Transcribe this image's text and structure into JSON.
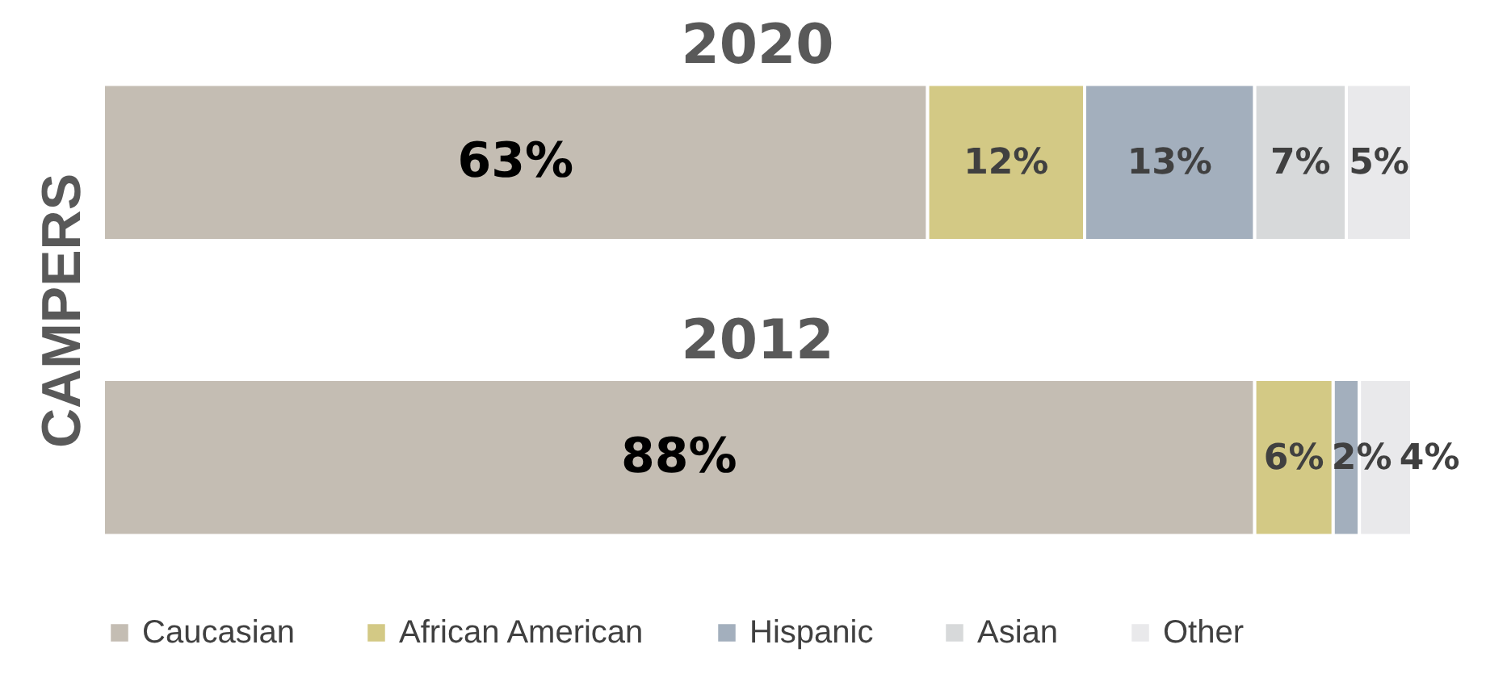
{
  "chart_data": {
    "type": "bar",
    "orientation": "horizontal",
    "stacked": true,
    "ylabel": "CAMPERS",
    "categories": [
      "2020",
      "2012"
    ],
    "legend": "bottom",
    "grid": false,
    "series": [
      {
        "name": "Caucasian",
        "color": "#c4bdb3",
        "values": [
          63,
          88
        ],
        "value_labels": [
          "63%",
          "88%"
        ]
      },
      {
        "name": "African American",
        "color": "#d3c985",
        "values": [
          12,
          6
        ],
        "value_labels": [
          "12%",
          "6%"
        ]
      },
      {
        "name": "Hispanic",
        "color": "#a3afbd",
        "values": [
          13,
          2
        ],
        "value_labels": [
          "13%",
          "2%"
        ]
      },
      {
        "name": "Asian",
        "color": "#d7d9da",
        "values": [
          7,
          0
        ],
        "value_labels": [
          "7%",
          null
        ]
      },
      {
        "name": "Other",
        "color": "#e9e9eb",
        "values": [
          5,
          4
        ],
        "value_labels": [
          "5%",
          "4%"
        ]
      }
    ]
  }
}
